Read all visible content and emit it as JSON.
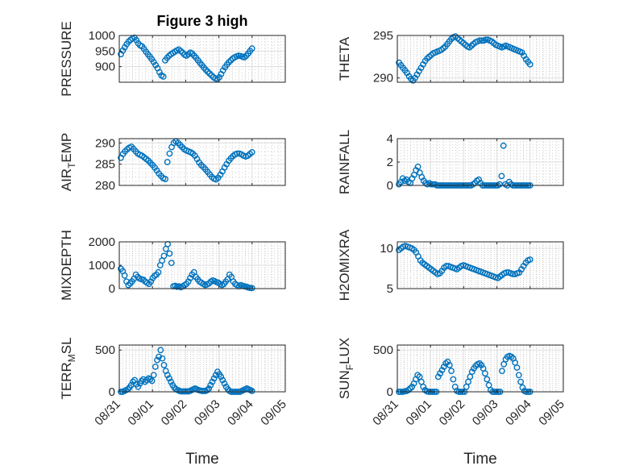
{
  "figure": {
    "title": "Figure 3 high",
    "xlabel": "Time",
    "x_ticks": [
      "08/31",
      "09/01",
      "09/02",
      "09/03",
      "09/04",
      "09/05"
    ]
  },
  "chart_data": [
    {
      "type": "scatter",
      "title": "Figure 3 high",
      "ylabel": "PRESSURE",
      "ylim": [
        850,
        1000
      ],
      "yticks": [
        "1000",
        "950",
        "900"
      ],
      "grid": true,
      "series": [
        {
          "values": [
            940,
            952,
            962,
            972,
            980,
            986,
            990,
            993,
            985,
            975,
            968,
            965,
            957,
            948,
            940,
            932,
            924,
            915,
            905,
            895,
            882,
            872,
            868,
            920,
            928,
            935,
            940,
            944,
            948,
            952,
            955,
            950,
            945,
            938,
            935,
            940,
            945,
            942,
            935,
            928,
            920,
            912,
            905,
            897,
            890,
            884,
            878,
            872,
            866,
            862,
            860,
            866,
            876,
            888,
            898,
            906,
            914,
            920,
            926,
            930,
            933,
            935,
            934,
            932,
            930,
            935,
            942,
            950,
            958
          ]
        }
      ]
    },
    {
      "type": "scatter",
      "ylabel": "THETA",
      "ylim": [
        289.5,
        295
      ],
      "yticks": [
        "295",
        "290"
      ],
      "grid": true,
      "series": [
        {
          "values": [
            291.8,
            291.5,
            291.2,
            290.9,
            290.6,
            290.2,
            289.9,
            289.7,
            290.0,
            290.4,
            290.8,
            291.2,
            291.6,
            292.0,
            292.3,
            292.5,
            292.7,
            292.9,
            293.0,
            293.1,
            293.2,
            293.3,
            293.5,
            293.7,
            294.0,
            294.3,
            294.6,
            294.8,
            294.9,
            294.7,
            294.5,
            294.3,
            294.1,
            293.9,
            293.7,
            293.6,
            293.8,
            294.0,
            294.2,
            294.3,
            294.4,
            294.4,
            294.4,
            294.5,
            294.5,
            294.4,
            294.3,
            294.1,
            293.9,
            293.8,
            293.7,
            293.6,
            293.7,
            293.8,
            293.7,
            293.6,
            293.5,
            293.4,
            293.3,
            293.2,
            293.1,
            293.0,
            292.6,
            292.2,
            291.9,
            291.6
          ]
        }
      ]
    },
    {
      "type": "scatter",
      "ylabel": "AIR_TEMP",
      "ylim": [
        280,
        291
      ],
      "yticks": [
        "290",
        "285",
        "280"
      ],
      "grid": true,
      "series": [
        {
          "values": [
            286.5,
            287.4,
            288.0,
            288.5,
            288.9,
            289.1,
            288.6,
            288.0,
            287.5,
            287.2,
            287.0,
            286.6,
            286.2,
            285.8,
            285.3,
            284.8,
            284.2,
            283.5,
            282.8,
            282.2,
            281.7,
            281.5,
            285.5,
            287.5,
            289.0,
            290.0,
            290.4,
            290.0,
            289.5,
            289.0,
            288.5,
            288.2,
            288.0,
            287.8,
            287.5,
            287.0,
            286.2,
            285.4,
            284.8,
            284.3,
            283.8,
            283.2,
            282.6,
            282.0,
            281.6,
            281.4,
            281.8,
            282.5,
            283.3,
            284.2,
            285.0,
            285.8,
            286.4,
            286.9,
            287.3,
            287.5,
            287.5,
            287.3,
            287.0,
            286.8,
            287.0,
            287.4,
            287.8
          ]
        }
      ]
    },
    {
      "type": "scatter",
      "ylabel": "RAINFALL",
      "ylim": [
        0,
        4
      ],
      "yticks": [
        "4",
        "2",
        "0"
      ],
      "grid": true,
      "series": [
        {
          "values": [
            0.1,
            0.3,
            0.6,
            0.4,
            0.5,
            0.3,
            0.2,
            0.6,
            0.9,
            1.3,
            1.6,
            1.1,
            0.7,
            0.4,
            0.2,
            0.1,
            0.2,
            0.1,
            0.1,
            0.1,
            0.0,
            0.0,
            0.0,
            0.0,
            0.0,
            0.0,
            0.0,
            0.0,
            0.0,
            0.0,
            0.0,
            0.0,
            0.0,
            0.0,
            0.0,
            0.0,
            0.0,
            0.0,
            0.0,
            0.1,
            0.2,
            0.4,
            0.5,
            0.2,
            0.0,
            0.0,
            0.0,
            0.0,
            0.0,
            0.0,
            0.0,
            0.0,
            0.0,
            0.1,
            0.8,
            3.4,
            0.1,
            0.0,
            0.3,
            0.1,
            0.0,
            0.0,
            0.0,
            0.0,
            0.0,
            0.0,
            0.0,
            0.0,
            0.0,
            0.0
          ]
        }
      ]
    },
    {
      "type": "scatter",
      "ylabel": "MIXDEPTH",
      "ylim": [
        0,
        2000
      ],
      "yticks": [
        "2000",
        "1000",
        "0"
      ],
      "grid": true,
      "series": [
        {
          "values": [
            850,
            750,
            560,
            300,
            150,
            220,
            310,
            420,
            600,
            500,
            430,
            400,
            380,
            300,
            250,
            200,
            300,
            450,
            550,
            600,
            700,
            1000,
            1200,
            1400,
            1700,
            1900,
            1500,
            1100,
            100,
            120,
            80,
            100,
            60,
            100,
            150,
            200,
            300,
            450,
            600,
            700,
            500,
            400,
            300,
            250,
            200,
            150,
            180,
            220,
            300,
            350,
            320,
            280,
            250,
            200,
            150,
            200,
            300,
            400,
            600,
            500,
            300,
            200,
            150,
            100,
            150,
            120,
            100,
            80,
            50,
            30,
            20
          ]
        }
      ]
    },
    {
      "type": "scatter",
      "ylabel": "H2OMIXRA",
      "ylim": [
        5,
        10.8
      ],
      "yticks": [
        "10",
        "5"
      ],
      "grid": true,
      "series": [
        {
          "values": [
            9.8,
            10.0,
            10.2,
            10.3,
            10.2,
            10.1,
            10.0,
            9.8,
            9.5,
            9.0,
            8.5,
            8.2,
            8.0,
            7.8,
            7.6,
            7.4,
            7.2,
            7.0,
            6.8,
            6.9,
            7.2,
            7.6,
            7.8,
            7.8,
            7.7,
            7.6,
            7.5,
            7.4,
            7.6,
            7.8,
            7.9,
            7.8,
            7.7,
            7.6,
            7.5,
            7.4,
            7.3,
            7.2,
            7.1,
            7.0,
            6.9,
            6.8,
            6.7,
            6.6,
            6.5,
            6.4,
            6.3,
            6.5,
            6.7,
            6.9,
            7.0,
            7.0,
            6.9,
            6.8,
            6.8,
            6.9,
            7.0,
            7.4,
            7.8,
            8.2,
            8.5,
            8.6
          ]
        }
      ]
    },
    {
      "type": "scatter",
      "ylabel": "TERR_MSL",
      "ylim": [
        0,
        560
      ],
      "yticks": [
        "500",
        "0"
      ],
      "grid": true,
      "series": [
        {
          "values": [
            0,
            0,
            10,
            20,
            30,
            50,
            80,
            120,
            140,
            90,
            60,
            100,
            130,
            150,
            120,
            140,
            160,
            150,
            130,
            200,
            300,
            380,
            420,
            500,
            400,
            320,
            250,
            200,
            160,
            120,
            80,
            50,
            30,
            20,
            10,
            5,
            5,
            5,
            5,
            5,
            10,
            20,
            30,
            40,
            30,
            20,
            15,
            10,
            10,
            10,
            20,
            40,
            80,
            120,
            160,
            200,
            240,
            210,
            180,
            140,
            100,
            60,
            30,
            10,
            0,
            0,
            0,
            0,
            0,
            0,
            10,
            20,
            30,
            40,
            30,
            20,
            10
          ]
        }
      ]
    },
    {
      "type": "scatter",
      "ylabel": "SUN_FLUX",
      "ylim": [
        0,
        560
      ],
      "yticks": [
        "500",
        "0"
      ],
      "grid": true,
      "series": [
        {
          "values": [
            0,
            0,
            0,
            5,
            10,
            20,
            40,
            60,
            100,
            150,
            200,
            180,
            120,
            60,
            20,
            5,
            0,
            0,
            0,
            0,
            0,
            180,
            220,
            260,
            300,
            340,
            360,
            320,
            250,
            150,
            60,
            10,
            0,
            0,
            0,
            0,
            60,
            120,
            180,
            240,
            280,
            310,
            330,
            340,
            320,
            280,
            220,
            150,
            80,
            20,
            0,
            0,
            0,
            0,
            0,
            250,
            330,
            390,
            420,
            430,
            420,
            400,
            350,
            290,
            200,
            120,
            50,
            10,
            0,
            0,
            0
          ]
        }
      ]
    }
  ]
}
